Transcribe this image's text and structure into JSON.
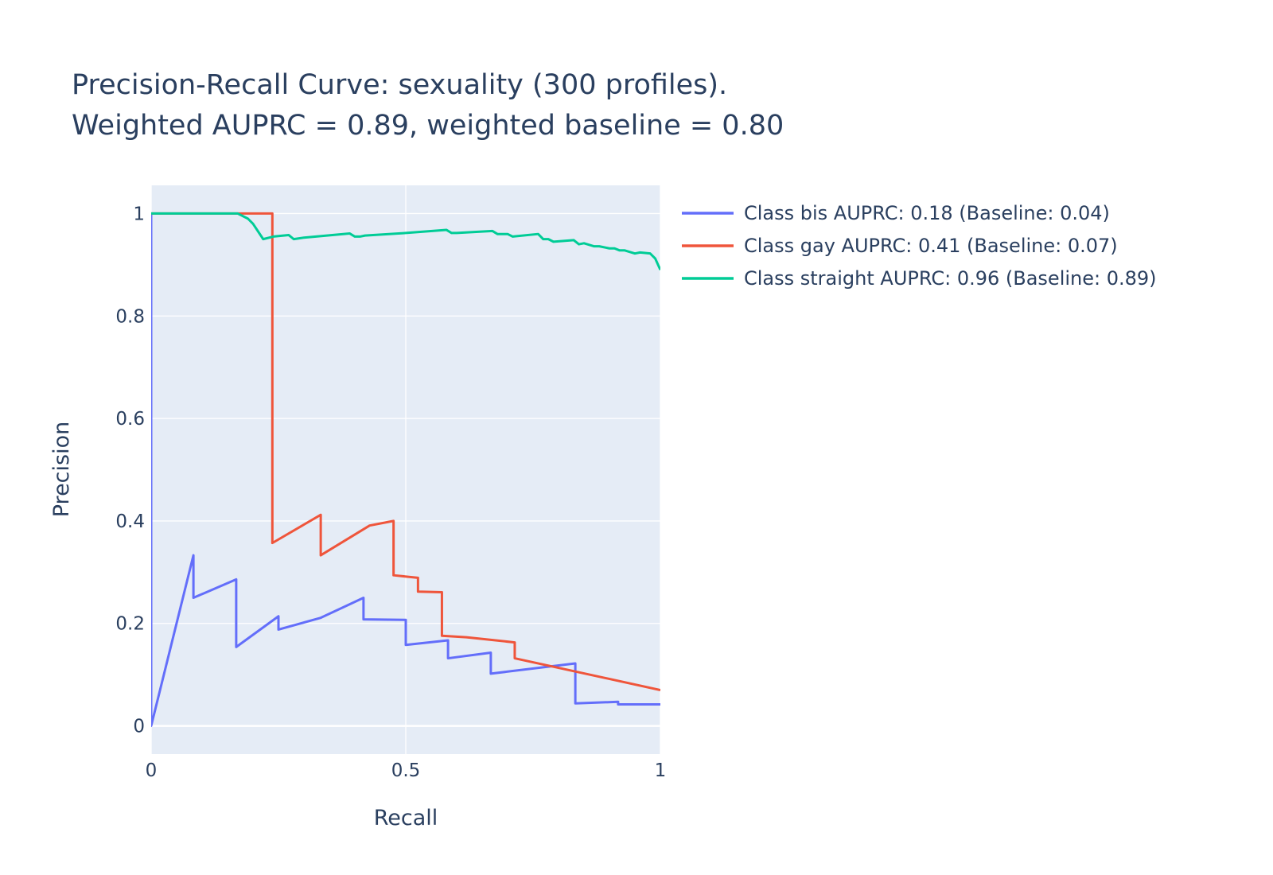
{
  "chart_data": {
    "type": "line",
    "title_lines": [
      "Precision-Recall Curve: sexuality (300 profiles).",
      "Weighted AUPRC = 0.89, weighted baseline = 0.80"
    ],
    "xlabel": "Recall",
    "ylabel": "Precision",
    "xlim": [
      0,
      1
    ],
    "ylim": [
      -0.055,
      1.055
    ],
    "x_ticks": [
      0,
      0.5,
      1
    ],
    "x_tick_labels": [
      "0",
      "0.5",
      "1"
    ],
    "y_ticks": [
      0,
      0.2,
      0.4,
      0.6,
      0.8,
      1
    ],
    "y_tick_labels": [
      "0",
      "0.2",
      "0.4",
      "0.6",
      "0.8",
      "1"
    ],
    "grid": true,
    "legend_position": "top-right outside",
    "plot_background": "#e5ecf6",
    "series": [
      {
        "name": "Class bis AUPRC: 0.18 (Baseline: 0.04)",
        "color": "#636efa",
        "x": [
          0,
          0,
          0.083,
          0.083,
          0.083,
          0.167,
          0.167,
          0.167,
          0.25,
          0.25,
          0.333,
          0.417,
          0.417,
          0.5,
          0.5,
          0.583,
          0.583,
          0.667,
          0.667,
          0.833,
          0.833,
          0.917,
          0.917,
          1.0
        ],
        "y": [
          1.0,
          0.0,
          0.333,
          0.333,
          0.25,
          0.286,
          0.286,
          0.154,
          0.214,
          0.188,
          0.211,
          0.25,
          0.208,
          0.207,
          0.158,
          0.167,
          0.132,
          0.143,
          0.102,
          0.122,
          0.044,
          0.047,
          0.042,
          0.042
        ]
      },
      {
        "name": "Class gay AUPRC: 0.41 (Baseline: 0.07)",
        "color": "#ef553b",
        "x": [
          0,
          0.238,
          0.238,
          0.333,
          0.333,
          0.429,
          0.476,
          0.476,
          0.524,
          0.524,
          0.571,
          0.571,
          0.619,
          0.714,
          0.714,
          1.0
        ],
        "y": [
          1.0,
          1.0,
          0.357,
          0.412,
          0.333,
          0.391,
          0.4,
          0.294,
          0.289,
          0.262,
          0.261,
          0.176,
          0.173,
          0.163,
          0.132,
          0.07
        ]
      },
      {
        "name": "Class straight AUPRC: 0.96 (Baseline: 0.89)",
        "color": "#00cc96",
        "x": [
          0,
          0.17,
          0.19,
          0.2,
          0.22,
          0.24,
          0.27,
          0.28,
          0.3,
          0.39,
          0.4,
          0.41,
          0.42,
          0.5,
          0.58,
          0.59,
          0.6,
          0.67,
          0.68,
          0.7,
          0.71,
          0.76,
          0.77,
          0.78,
          0.79,
          0.83,
          0.84,
          0.85,
          0.87,
          0.88,
          0.9,
          0.91,
          0.92,
          0.93,
          0.95,
          0.96,
          0.98,
          0.99,
          1.0
        ],
        "y": [
          1.0,
          1.0,
          0.99,
          0.98,
          0.95,
          0.955,
          0.958,
          0.95,
          0.953,
          0.961,
          0.955,
          0.955,
          0.957,
          0.962,
          0.968,
          0.962,
          0.962,
          0.966,
          0.96,
          0.96,
          0.955,
          0.96,
          0.95,
          0.95,
          0.945,
          0.948,
          0.94,
          0.942,
          0.936,
          0.936,
          0.932,
          0.932,
          0.928,
          0.928,
          0.922,
          0.924,
          0.922,
          0.912,
          0.89
        ]
      }
    ]
  }
}
